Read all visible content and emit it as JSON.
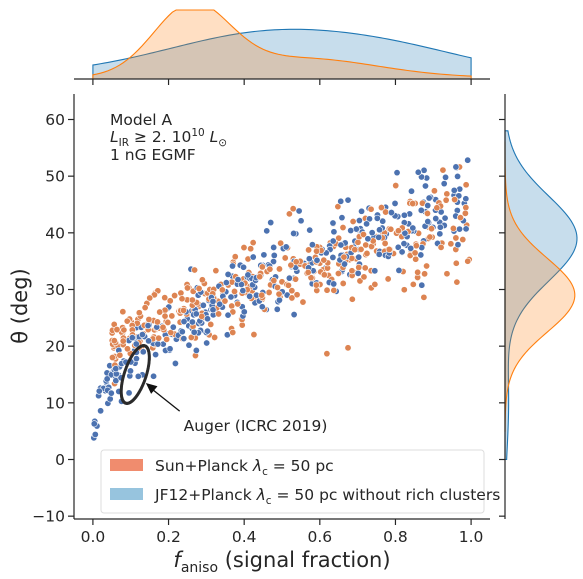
{
  "chart_data": {
    "type": "scatter",
    "x_label_main": "f",
    "x_label_sub": "aniso",
    "x_label_rest": " (signal fraction)",
    "y_label": "θ (deg)",
    "xlim": [
      -0.05,
      1.05
    ],
    "ylim": [
      -10.5,
      64.5
    ],
    "x_ticks": [
      0.0,
      0.2,
      0.4,
      0.6,
      0.8,
      1.0
    ],
    "x_tick_labels": [
      "0.0",
      "0.2",
      "0.4",
      "0.6",
      "0.8",
      "1.0"
    ],
    "y_ticks": [
      -10,
      0,
      10,
      20,
      30,
      40,
      50,
      60
    ],
    "y_tick_labels": [
      "−10",
      "0",
      "10",
      "20",
      "30",
      "40",
      "50",
      "60"
    ],
    "grid": false,
    "legend_placement": "lower-right",
    "annotation_lines": [
      "Model A",
      "L",
      "IR",
      " ≥ 2. 10",
      "10",
      " L",
      "⊙",
      "1 nG EGMF"
    ],
    "auger": {
      "label": "Auger (ICRC 2019)",
      "ellipse": {
        "x_center": 0.112,
        "y_center": 15.0,
        "x_halfwidth": 0.03,
        "y_halfwidth": 5.1,
        "x_slope": 0.0043
      },
      "arrow_tip": [
        0.14,
        13.5
      ],
      "arrow_text_pos": [
        0.24,
        5.0
      ]
    },
    "series": [
      {
        "name": "Sun+Planck λc = 50 pc",
        "legend_parts": [
          "Sun+Planck ",
          "λ",
          "c",
          " = 50 pc"
        ],
        "color": "#dd8452",
        "patch_color": "#f08c6e",
        "kde_color": "#ff7f0e",
        "kde_x": {
          "center": 0.26,
          "width": 0.18,
          "peak_height": 1.0
        },
        "kde_y": {
          "center": 29.0,
          "width": 8.0,
          "peak_height": 1.0
        },
        "points_spec": {
          "n": 360,
          "x_min": 0.05,
          "x_max": 1.0,
          "model": "y = 15 + 26*(x^0.55)",
          "noise_sd": 4.0
        }
      },
      {
        "name": "JF12+Planck λc = 50 pc without rich clusters",
        "legend_parts": [
          "JF12+Planck ",
          "λ",
          "c",
          " = 50 pc without rich clusters"
        ],
        "color": "#4c72b0",
        "patch_color": "#97c4de",
        "kde_color": "#1f77b4",
        "kde_x": {
          "center": 0.5,
          "width": 0.3,
          "peak_height": 0.62
        },
        "kde_y": {
          "center": 38.5,
          "width": 8.5,
          "peak_height": 1.0
        },
        "points_spec": {
          "n": 360,
          "x_min": 0.0,
          "x_max": 1.0,
          "model": "y = 5 + 40*(x^0.5)",
          "noise_sd": 4.0
        }
      }
    ]
  }
}
